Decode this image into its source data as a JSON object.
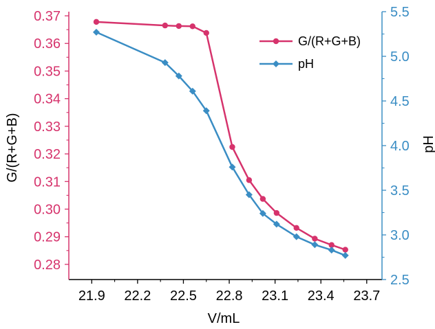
{
  "chart_data": {
    "type": "line",
    "xlabel": "V/mL",
    "ylabel_left": "G/(R+G+B)",
    "ylabel_right": "pH",
    "xlim": [
      21.75,
      23.8
    ],
    "ylim_left": [
      0.2745,
      0.3715
    ],
    "ylim_right": [
      2.5,
      5.5
    ],
    "x_ticks": [
      "21.9",
      "22.2",
      "22.5",
      "22.8",
      "23.1",
      "23.4",
      "23.7"
    ],
    "y_left_ticks": [
      "0.28",
      "0.29",
      "0.30",
      "0.31",
      "0.32",
      "0.33",
      "0.34",
      "0.35",
      "0.36",
      "0.37"
    ],
    "y_right_ticks": [
      "2.5",
      "3.0",
      "3.5",
      "4.0",
      "4.5",
      "5.0",
      "5.5"
    ],
    "legend_position": "top-right",
    "colors": {
      "left_series": "#d6336c",
      "right_series": "#3a8dc4",
      "axis": "#000000"
    },
    "series": [
      {
        "name": "G/(R+G+B)",
        "axis": "left",
        "marker": "circle",
        "x": [
          21.93,
          22.38,
          22.47,
          22.56,
          22.65,
          22.82,
          22.93,
          23.02,
          23.11,
          23.24,
          23.36,
          23.47,
          23.56
        ],
        "y": [
          0.3678,
          0.3665,
          0.3663,
          0.3662,
          0.3638,
          0.3225,
          0.3105,
          0.3037,
          0.2986,
          0.2932,
          0.2893,
          0.287,
          0.2853
        ]
      },
      {
        "name": "pH",
        "axis": "right",
        "marker": "diamond",
        "x": [
          21.93,
          22.38,
          22.47,
          22.56,
          22.65,
          22.82,
          22.93,
          23.02,
          23.11,
          23.24,
          23.36,
          23.47,
          23.56
        ],
        "y": [
          5.27,
          4.93,
          4.78,
          4.61,
          4.39,
          3.76,
          3.45,
          3.24,
          3.12,
          2.98,
          2.89,
          2.83,
          2.77
        ]
      }
    ]
  }
}
